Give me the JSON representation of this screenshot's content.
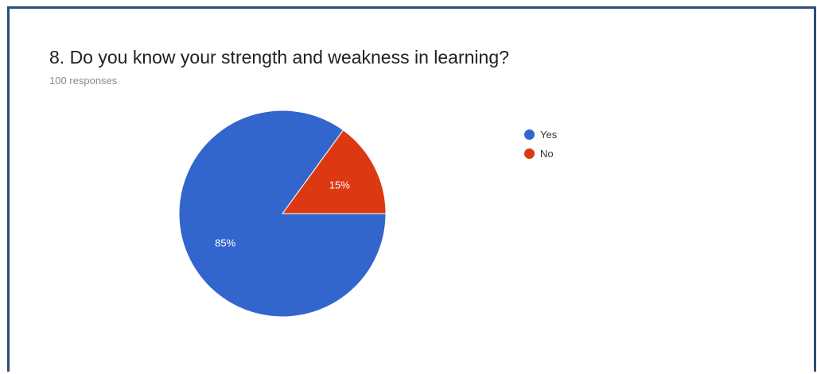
{
  "question": {
    "title": "8. Do you know your strength and weakness in learning?",
    "responses": "100 responses"
  },
  "chart_data": {
    "type": "pie",
    "title": "8. Do you know your strength and weakness in learning?",
    "categories": [
      "Yes",
      "No"
    ],
    "values": [
      85,
      15
    ],
    "labels": [
      "85%",
      "15%"
    ],
    "colors": [
      "#3366cc",
      "#dc3912"
    ],
    "legend_position": "right"
  }
}
